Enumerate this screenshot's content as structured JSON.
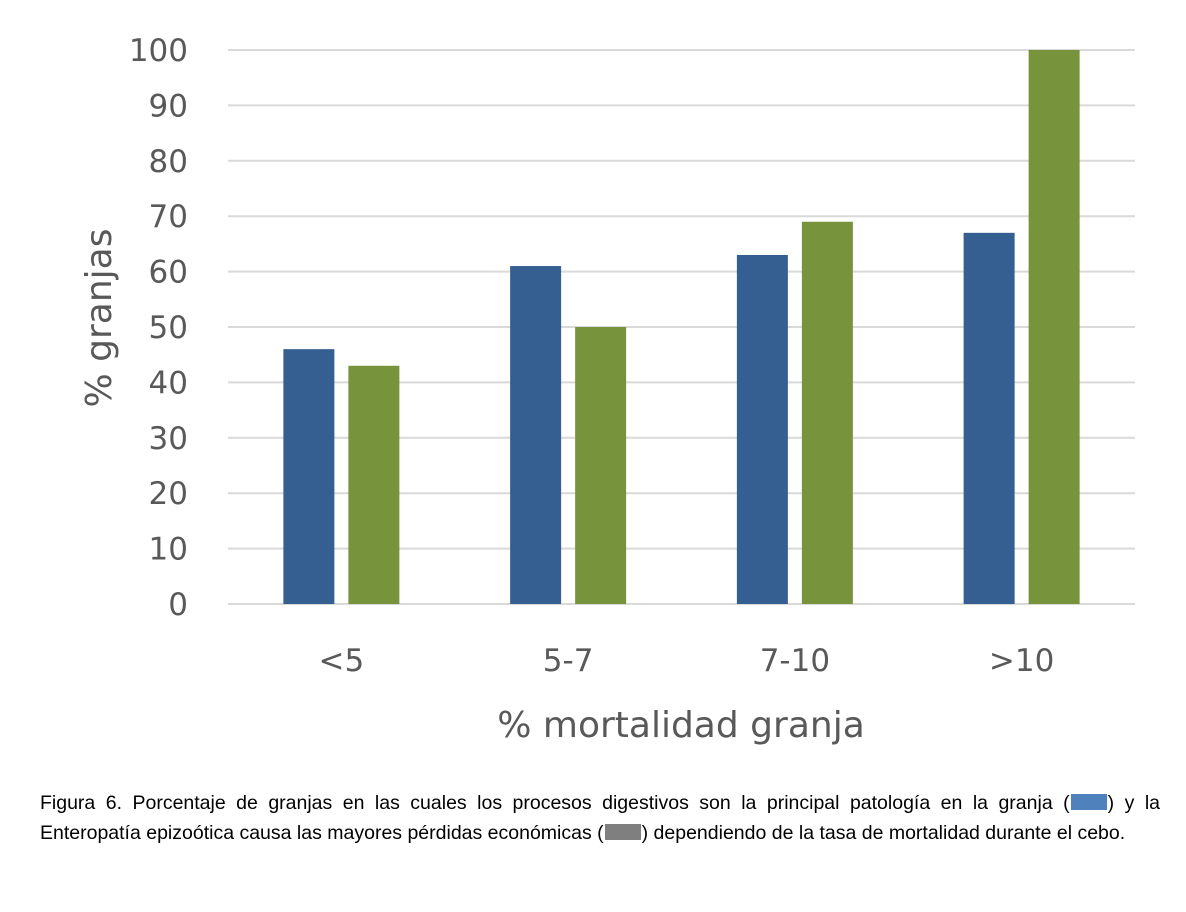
{
  "chart_data": {
    "type": "bar",
    "categories": [
      "<5",
      "5-7",
      "7-10",
      ">10"
    ],
    "series": [
      {
        "color": "#355F91",
        "values": [
          46,
          61,
          63,
          67
        ]
      },
      {
        "color": "#77933C",
        "values": [
          43,
          50,
          69,
          100
        ]
      }
    ],
    "xlabel": "% mortalidad granja",
    "ylabel": "% granjas",
    "ylim": [
      0,
      100
    ],
    "yticks": [
      0,
      10,
      20,
      30,
      40,
      50,
      60,
      70,
      80,
      90,
      100
    ],
    "grid": true,
    "grid_color": "#D9D9D9"
  },
  "caption": {
    "part1": "Figura 6. Porcentaje de granjas en las cuales los procesos digestivos son la principal patología en la granja (",
    "swatch1_color": "#4F81BD",
    "part2": ") y la Enteropatía epizoótica causa las mayores pérdidas económicas (",
    "swatch2_color": "#7F7F7F",
    "part3": ") dependiendo de la tasa de mortalidad durante el cebo."
  }
}
